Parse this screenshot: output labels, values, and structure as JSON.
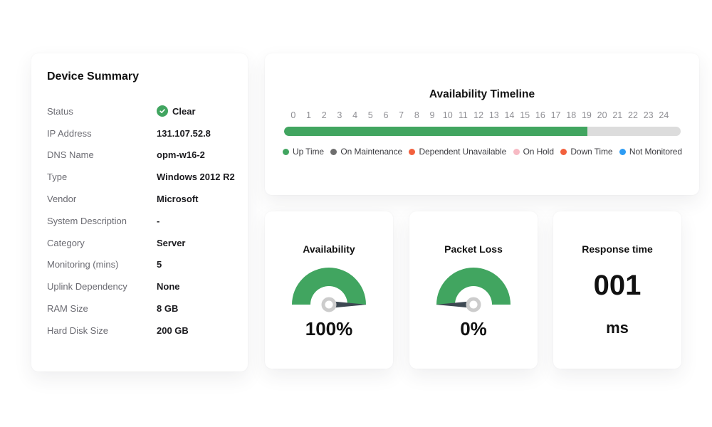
{
  "colors": {
    "green": "#41a560",
    "track": "#dcdcdc",
    "needle": "#3d4852",
    "hub": "#cccccc"
  },
  "device_summary": {
    "title": "Device Summary",
    "rows": [
      {
        "label": "Status",
        "value": "Clear",
        "icon": "check-circle"
      },
      {
        "label": "IP Address",
        "value": "131.107.52.8"
      },
      {
        "label": "DNS Name",
        "value": "opm-w16-2"
      },
      {
        "label": "Type",
        "value": "Windows 2012 R2"
      },
      {
        "label": "Vendor",
        "value": "Microsoft"
      },
      {
        "label": "System Description",
        "value": "-"
      },
      {
        "label": "Category",
        "value": "Server"
      },
      {
        "label": "Monitoring (mins)",
        "value": "5"
      },
      {
        "label": "Uplink Dependency",
        "value": "None"
      },
      {
        "label": "RAM Size",
        "value": "8 GB"
      },
      {
        "label": "Hard Disk Size",
        "value": "200 GB"
      }
    ]
  },
  "timeline": {
    "title": "Availability Timeline",
    "ticks": [
      "0",
      "1",
      "2",
      "3",
      "4",
      "5",
      "6",
      "7",
      "8",
      "9",
      "10",
      "11",
      "12",
      "13",
      "14",
      "15",
      "16",
      "17",
      "18",
      "19",
      "20",
      "21",
      "22",
      "23",
      "24"
    ],
    "uptime_percent": 76.5,
    "legend": [
      {
        "label": "Up Time",
        "color": "#41a560"
      },
      {
        "label": "On Maintenance",
        "color": "#6e6e6e"
      },
      {
        "label": "Dependent Unavailable",
        "color": "#f2603d"
      },
      {
        "label": "On Hold",
        "color": "#f7bac4"
      },
      {
        "label": "Down Time",
        "color": "#f2603d"
      },
      {
        "label": "Not Monitored",
        "color": "#2d9cf4"
      }
    ]
  },
  "metrics": [
    {
      "title": "Availability",
      "type": "gauge",
      "percent": 100,
      "display": "100%"
    },
    {
      "title": "Packet Loss",
      "type": "gauge",
      "percent": 0,
      "display": "0%"
    },
    {
      "title": "Response time",
      "type": "number",
      "display": "001",
      "unit": "ms"
    }
  ]
}
